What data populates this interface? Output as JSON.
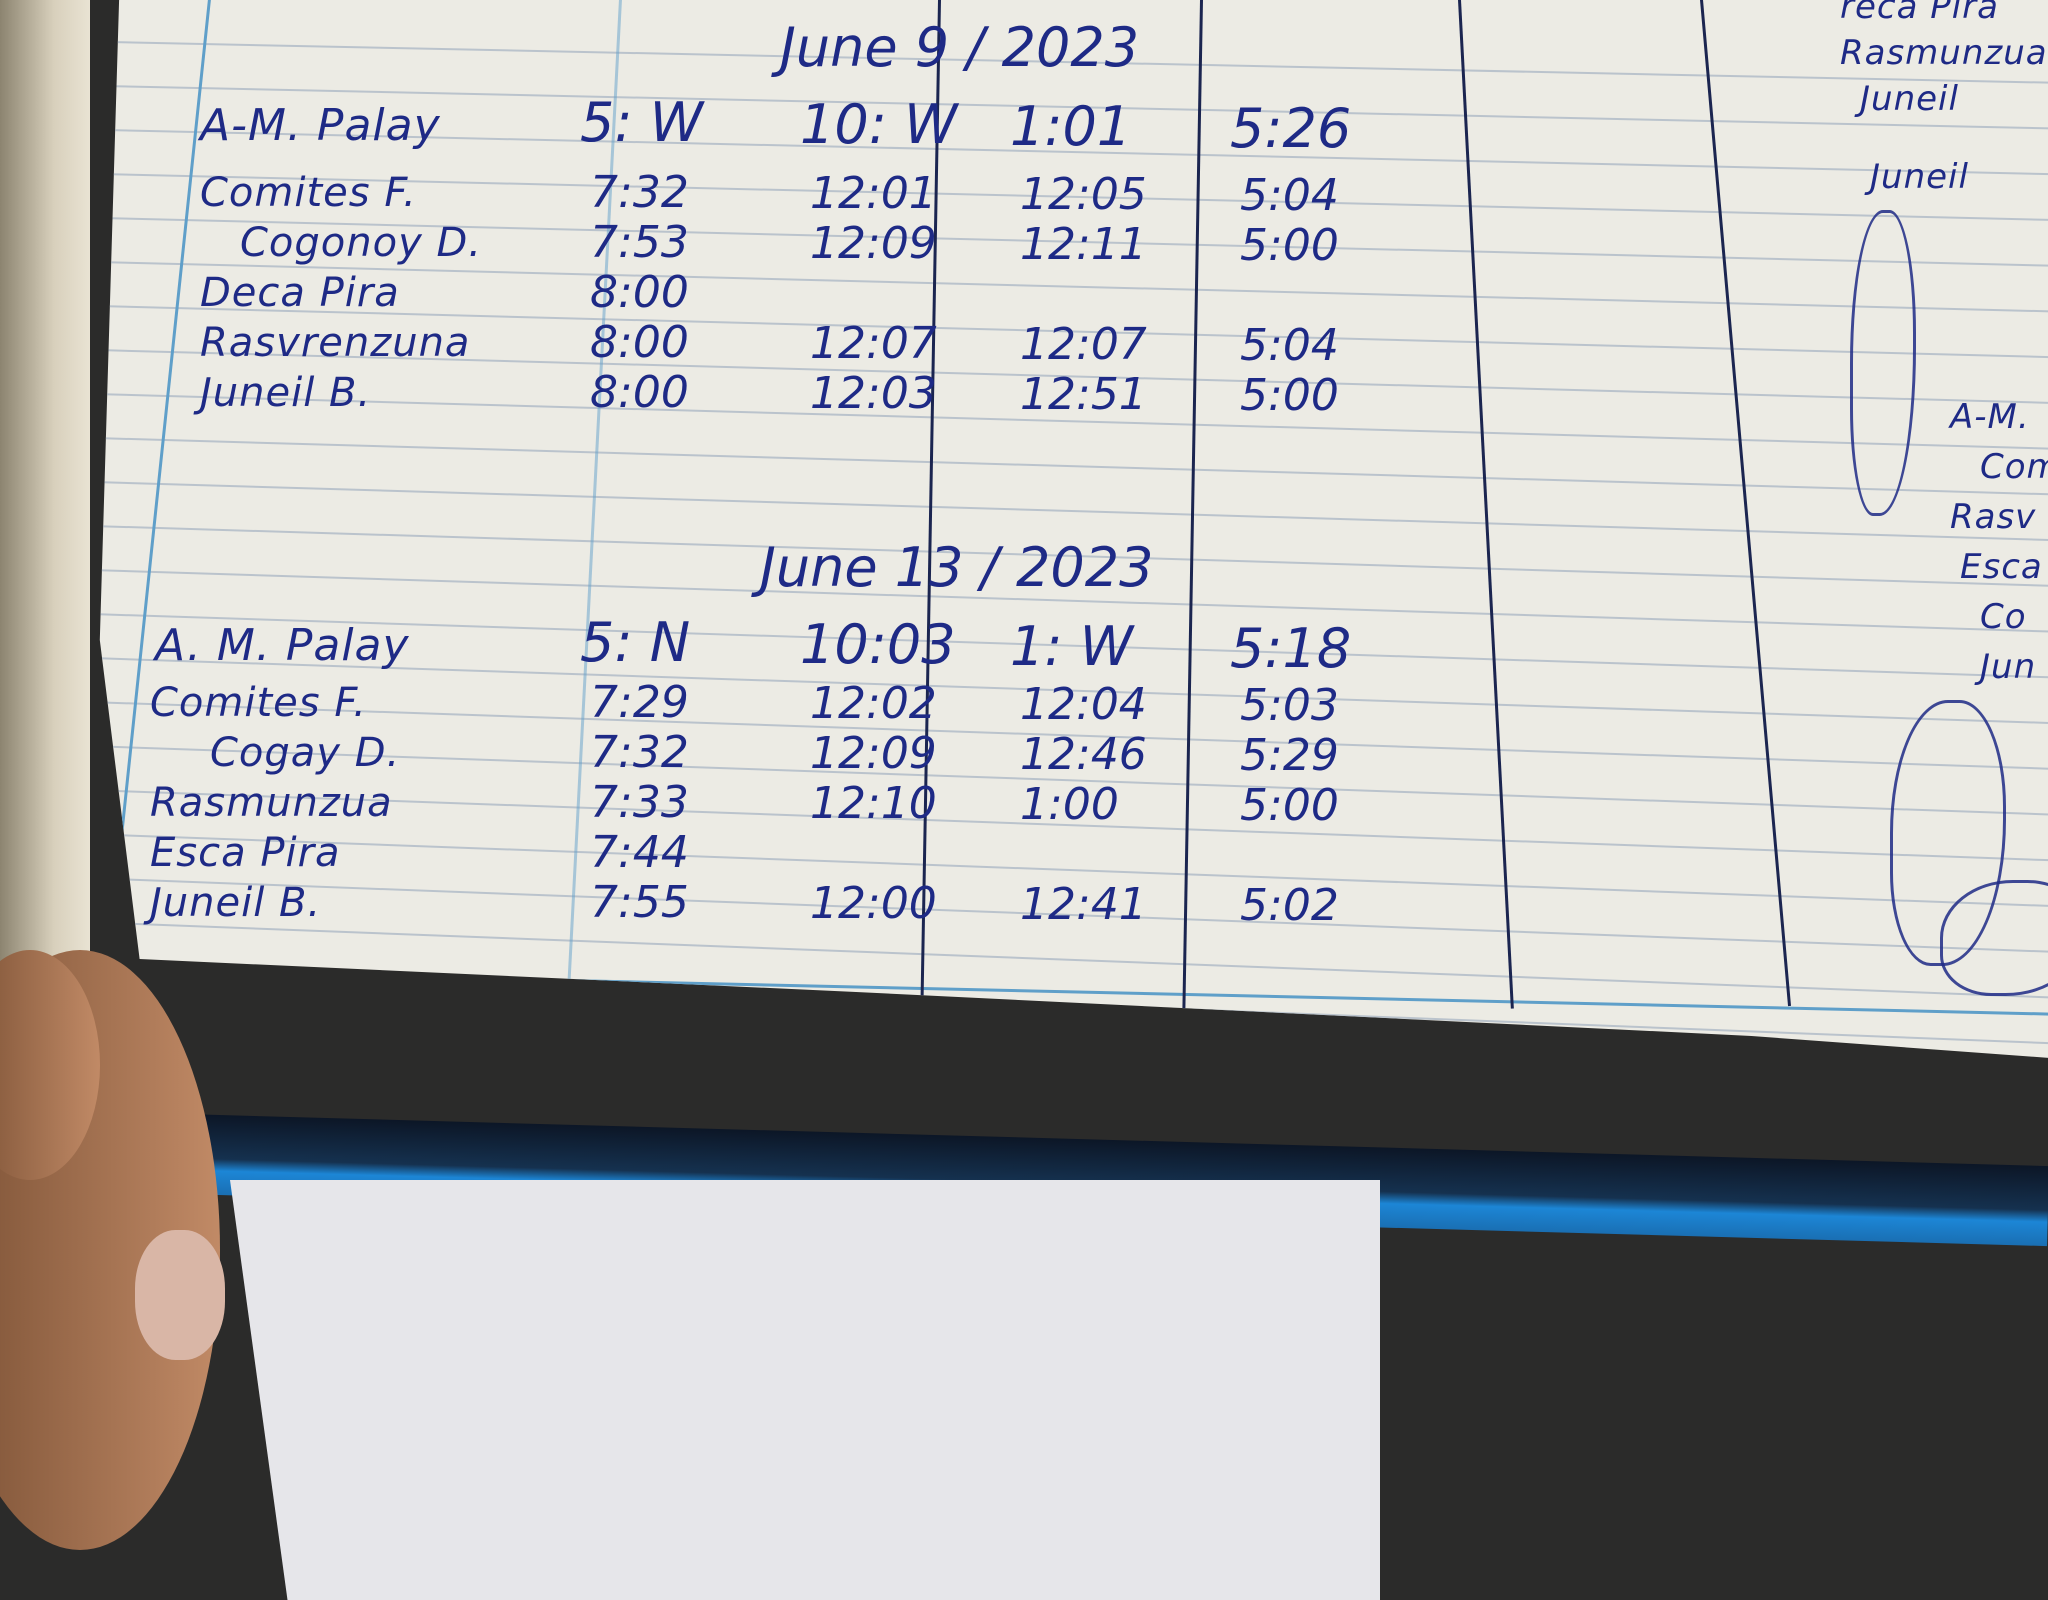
{
  "logbook": {
    "sections": [
      {
        "date": "June 9 / 2023",
        "header": {
          "name": "A-M. Palay",
          "times": [
            "5: W",
            "10: W",
            "1:01",
            "5:26"
          ]
        },
        "rows": [
          {
            "name": "Comites F.",
            "times": [
              "7:32",
              "12:01",
              "12:05",
              "5:04"
            ]
          },
          {
            "name": "Cogonoy D.",
            "times": [
              "7:53",
              "12:09",
              "12:11",
              "5:00"
            ]
          },
          {
            "name": "Deca Pira",
            "times": [
              "8:00",
              "",
              "",
              ""
            ]
          },
          {
            "name": "Rasvrenzuna",
            "times": [
              "8:00",
              "12:07",
              "12:07",
              "5:04"
            ]
          },
          {
            "name": "Juneil B.",
            "times": [
              "8:00",
              "12:03",
              "12:51",
              "5:00"
            ]
          }
        ]
      },
      {
        "date": "June 13 / 2023",
        "header": {
          "name": "A. M. Palay",
          "times": [
            "5: N",
            "10:03",
            "1: W",
            "5:18"
          ]
        },
        "rows": [
          {
            "name": "Comites F.",
            "times": [
              "7:29",
              "12:02",
              "12:04",
              "5:03"
            ]
          },
          {
            "name": "Cogay D.",
            "times": [
              "7:32",
              "12:09",
              "12:46",
              "5:29"
            ]
          },
          {
            "name": "Rasmunzua",
            "times": [
              "7:33",
              "12:10",
              "1:00",
              "5:00"
            ]
          },
          {
            "name": "Esca Pira",
            "times": [
              "7:44",
              "",
              "",
              ""
            ]
          },
          {
            "name": "Juneil B.",
            "times": [
              "7:55",
              "12:00",
              "12:41",
              "5:02"
            ]
          }
        ]
      }
    ],
    "right_page": [
      "reca Pira",
      "Rasmunzua",
      "Juneil",
      "Juneil",
      "A-M.",
      "Com",
      "Rasv",
      "Esca",
      "Co",
      "Jun"
    ],
    "ink_color": "#1e2a86"
  }
}
